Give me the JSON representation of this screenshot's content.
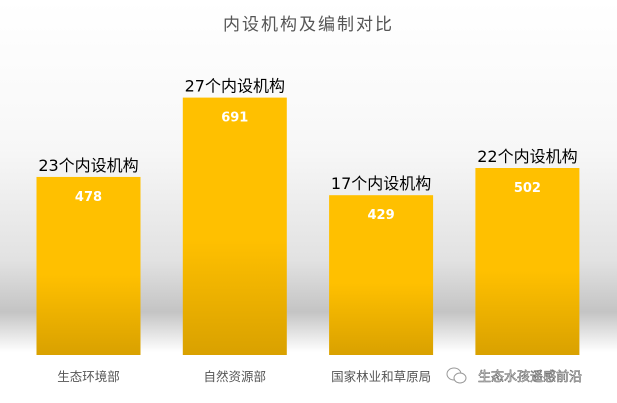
{
  "chart_data": {
    "type": "bar",
    "title": "内设机构及编制对比",
    "categories": [
      "生态环境部",
      "自然资源部",
      "国家林业和草原局",
      "生态水孩遥感前沿"
    ],
    "values": [
      478,
      691,
      429,
      502
    ],
    "annotations": [
      "23个内设机构",
      "27个内设机构",
      "17个内设机构",
      "22个内设机构"
    ],
    "ylim": [
      0,
      800
    ],
    "grid": false,
    "bar_color": "#FFC000",
    "bar_color_bottom": "#D9A100",
    "value_label_color": "#FFFFFF"
  },
  "watermark": "生态水孩遥感前沿"
}
